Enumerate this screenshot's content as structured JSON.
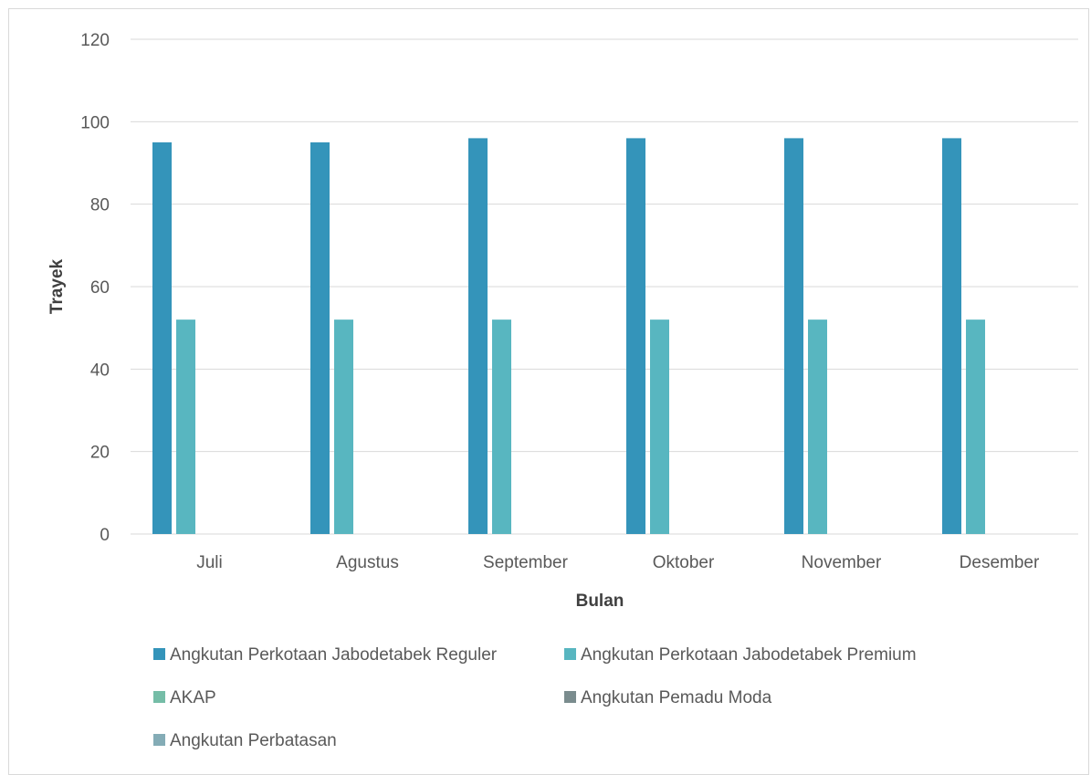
{
  "chart_data": {
    "type": "bar",
    "title": "",
    "xlabel": "Bulan",
    "ylabel": "Trayek",
    "ylim": [
      0,
      120
    ],
    "yticks": [
      0,
      20,
      40,
      60,
      80,
      100,
      120
    ],
    "grid": true,
    "legend_position": "bottom",
    "categories": [
      "Juli",
      "Agustus",
      "September",
      "Oktober",
      "November",
      "Desember"
    ],
    "series": [
      {
        "name": "Angkutan Perkotaan Jabodetabek Reguler",
        "color": "#3494BA",
        "values": [
          95,
          95,
          96,
          96,
          96,
          96
        ]
      },
      {
        "name": "Angkutan Perkotaan Jabodetabek Premium",
        "color": "#58B6C0",
        "values": [
          52,
          52,
          52,
          52,
          52,
          52
        ]
      },
      {
        "name": "AKAP",
        "color": "#75BDA7",
        "values": [
          0,
          0,
          0,
          0,
          0,
          0
        ]
      },
      {
        "name": "Angkutan Pemadu Moda",
        "color": "#7A8C8E",
        "values": [
          0,
          0,
          0,
          0,
          0,
          0
        ]
      },
      {
        "name": "Angkutan Perbatasan",
        "color": "#84ACB6",
        "values": [
          0,
          0,
          0,
          0,
          0,
          0
        ]
      }
    ]
  }
}
